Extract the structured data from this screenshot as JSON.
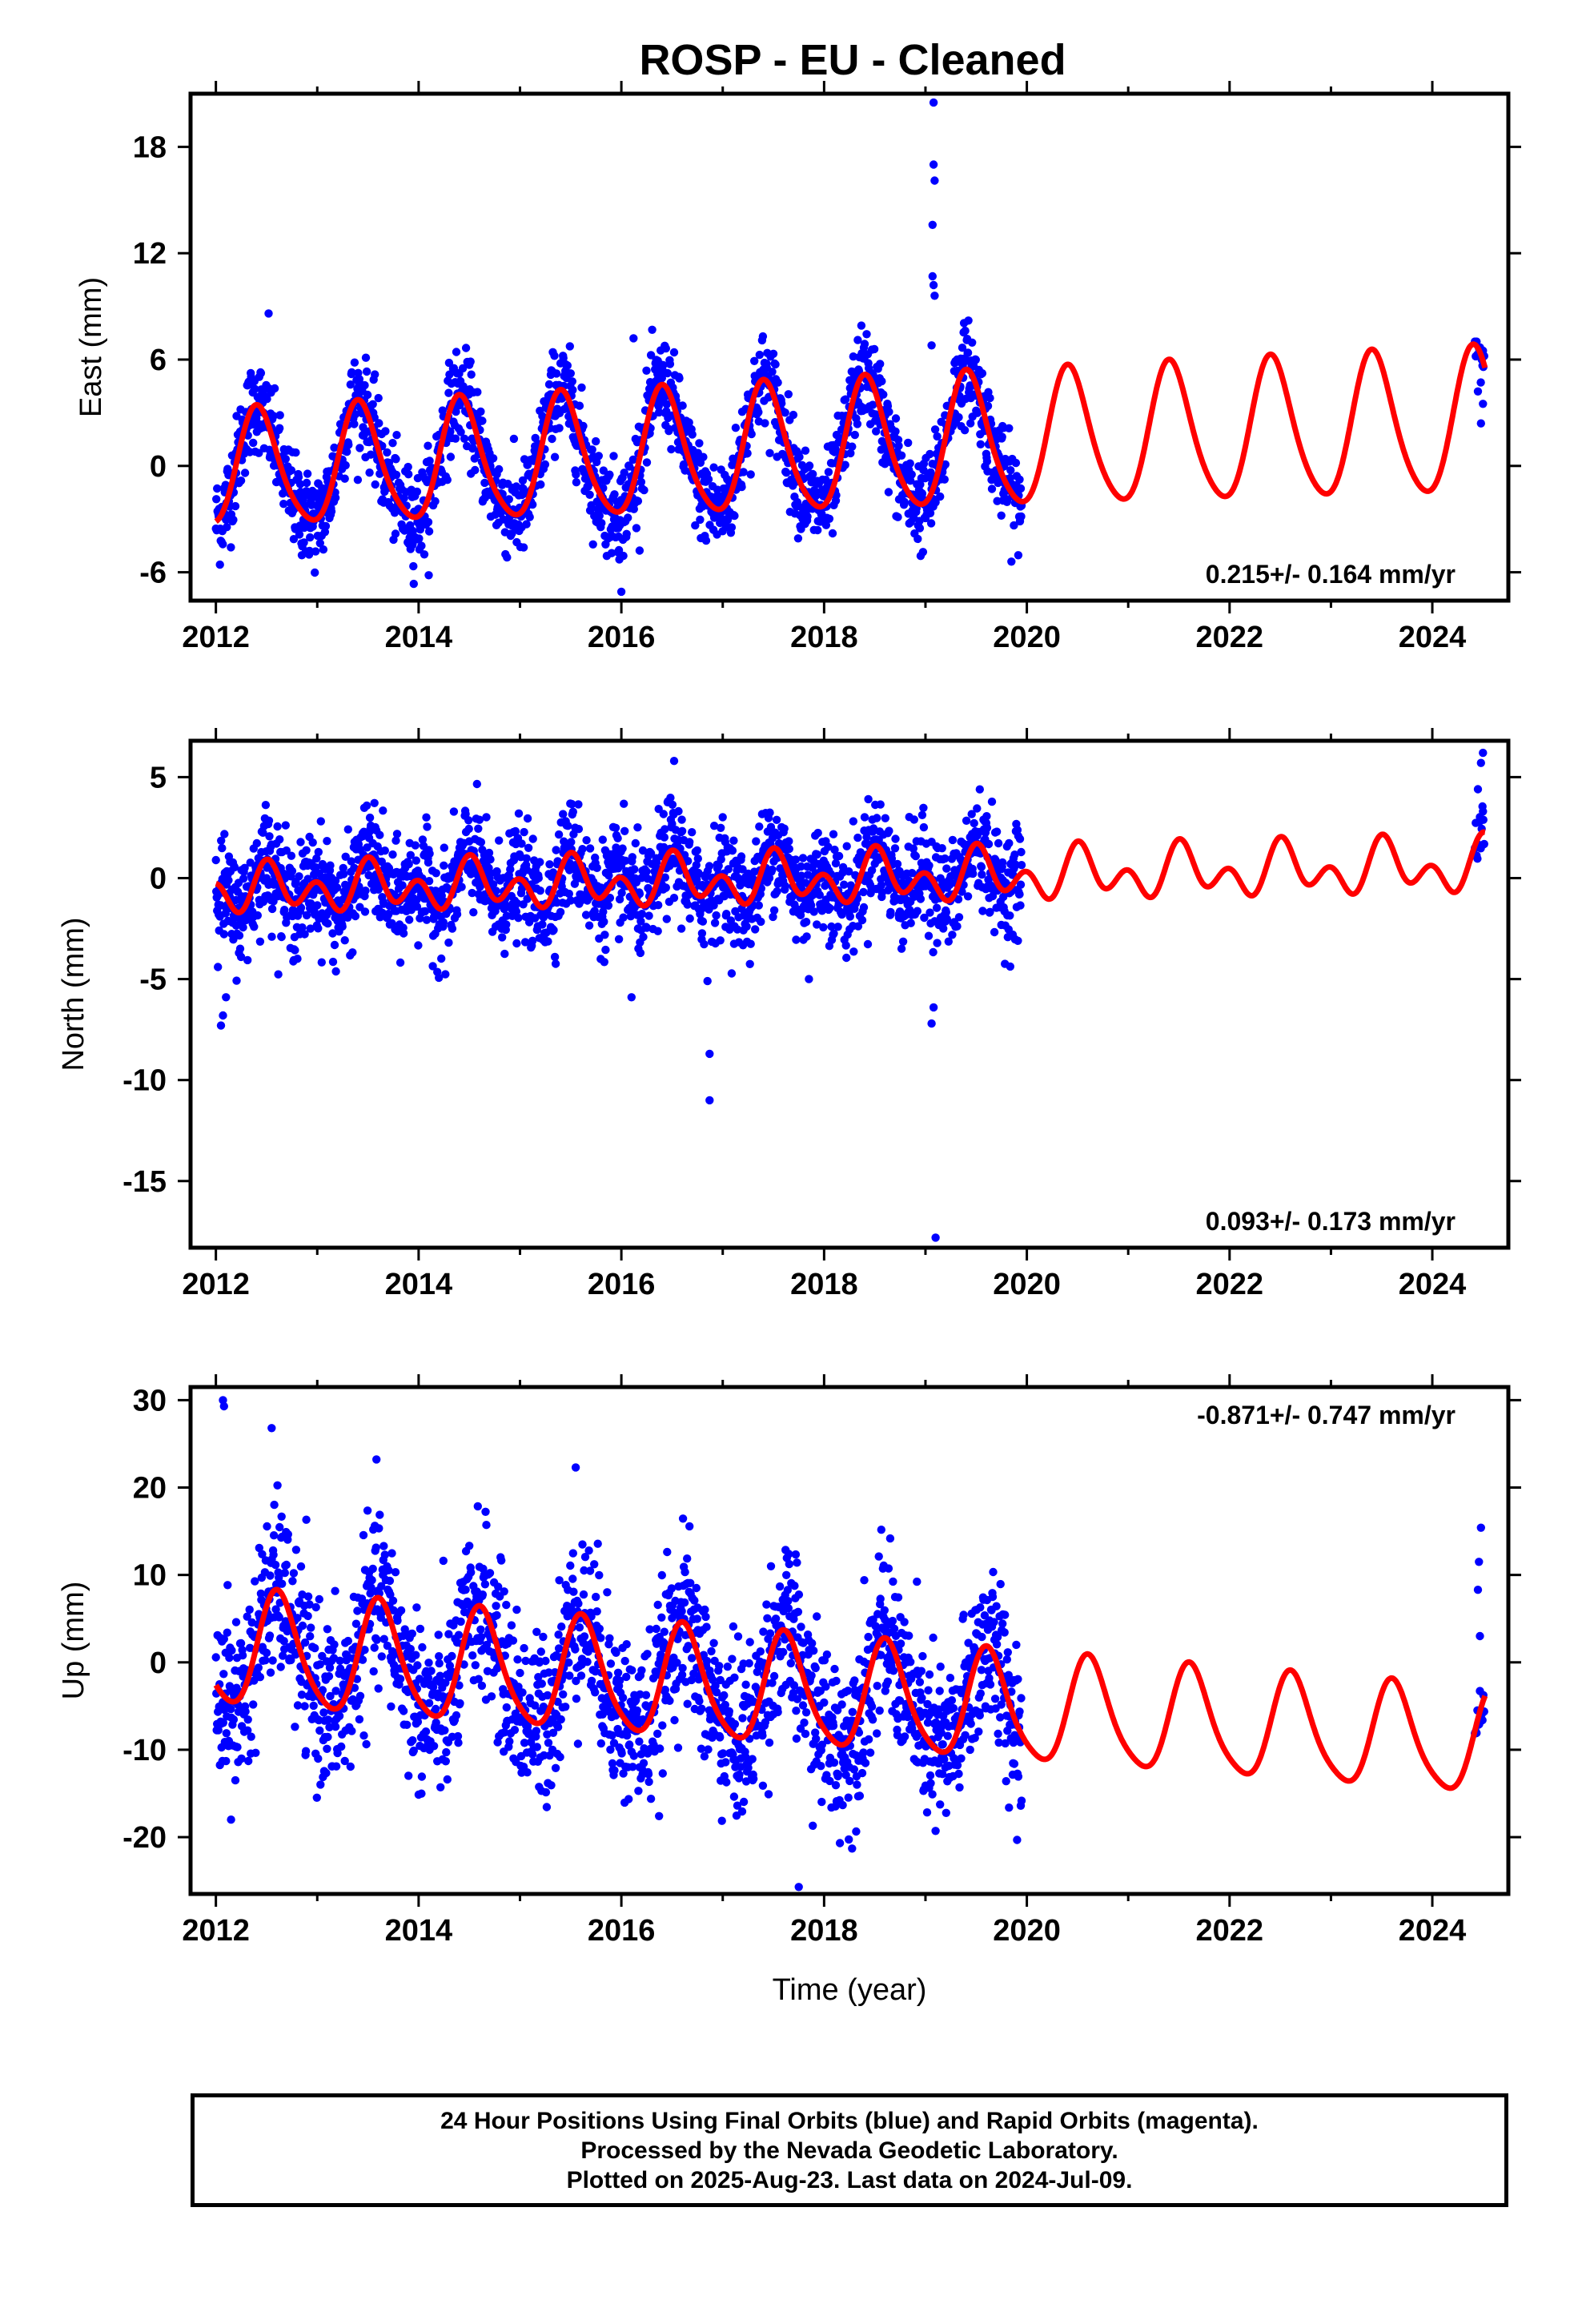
{
  "title": "ROSP  - EU - Cleaned",
  "footer": {
    "line1": "24 Hour Positions Using Final Orbits (blue) and Rapid Orbits (magenta).",
    "line2": "Processed by the Nevada Geodetic Laboratory.",
    "line3": "Plotted on 2025-Aug-23. Last data on 2024-Jul-09."
  },
  "colors": {
    "final_orbits": "#0000ff",
    "model": "#ff0000",
    "frame": "#000000"
  },
  "chart_data": [
    {
      "type": "scatter",
      "name": "east",
      "ylabel": "East (mm)",
      "xlabel": "",
      "xlim": [
        2011.75,
        2024.75
      ],
      "ylim": [
        -7.6,
        21
      ],
      "xticks": [
        "2012",
        "2014",
        "2016",
        "2018",
        "2020",
        "2022",
        "2024"
      ],
      "yticks": [
        "-6",
        "0",
        "6",
        "12",
        "18"
      ],
      "ytick_values": [
        -6,
        0,
        6,
        12,
        18
      ],
      "rate": "0.215+/- 0.164 mm/yr",
      "rate_position": "bottom-right",
      "model": {
        "offset": -0.3,
        "trend": 0.215,
        "annual_amp": 3.2,
        "annual_amp_growth": 0.07,
        "annual_peak_phase": 0.42,
        "semi_amp": 0.5
      },
      "data_span": [
        2012.0,
        2019.95
      ],
      "late_data_span": [
        2024.42,
        2024.52
      ],
      "noise_sd": 1.3,
      "outliers": [
        [
          2012.52,
          8.6
        ],
        [
          2016.12,
          7.2
        ],
        [
          2016.0,
          -7.1
        ],
        [
          2019.08,
          20.5
        ],
        [
          2019.08,
          17.0
        ],
        [
          2019.09,
          16.1
        ],
        [
          2019.07,
          13.6
        ],
        [
          2019.07,
          10.7
        ],
        [
          2019.08,
          10.2
        ],
        [
          2019.09,
          9.6
        ],
        [
          2019.06,
          6.8
        ],
        [
          2024.5,
          6.5
        ],
        [
          2024.48,
          2.4
        ],
        [
          2024.45,
          4.2
        ],
        [
          2024.5,
          3.5
        ]
      ]
    },
    {
      "type": "scatter",
      "name": "north",
      "ylabel": "North (mm)",
      "xlabel": "",
      "xlim": [
        2011.75,
        2024.75
      ],
      "ylim": [
        -18.3,
        6.8
      ],
      "xticks": [
        "2012",
        "2014",
        "2016",
        "2018",
        "2020",
        "2022",
        "2024"
      ],
      "yticks": [
        "-15",
        "-10",
        "-5",
        "0",
        "5"
      ],
      "ytick_values": [
        -15,
        -10,
        -5,
        0,
        5
      ],
      "rate": "0.093+/- 0.173 mm/yr",
      "rate_position": "bottom-right",
      "model": {
        "offset": -0.6,
        "trend": 0.093,
        "annual_amp": 0.6,
        "annual_amp_growth": 0.02,
        "annual_peak_phase": 0.55,
        "semi_amp": 0.9
      },
      "data_span": [
        2012.0,
        2019.95
      ],
      "late_data_span": [
        2024.42,
        2024.52
      ],
      "noise_sd": 1.3,
      "outliers": [
        [
          2012.05,
          -7.3
        ],
        [
          2012.07,
          -6.8
        ],
        [
          2012.1,
          -5.9
        ],
        [
          2016.52,
          5.8
        ],
        [
          2016.85,
          -5.1
        ],
        [
          2016.87,
          -8.7
        ],
        [
          2016.87,
          -11.0
        ],
        [
          2019.1,
          -17.8
        ],
        [
          2019.06,
          -7.2
        ],
        [
          2019.08,
          -6.4
        ],
        [
          2016.1,
          -5.9
        ],
        [
          2017.85,
          -5.0
        ],
        [
          2024.5,
          6.2
        ],
        [
          2024.48,
          5.7
        ],
        [
          2024.45,
          4.4
        ],
        [
          2024.5,
          3.3
        ]
      ]
    },
    {
      "type": "scatter",
      "name": "up",
      "ylabel": "Up (mm)",
      "xlabel": "Time (year)",
      "xlim": [
        2011.75,
        2024.75
      ],
      "ylim": [
        -26.5,
        31.5
      ],
      "xticks": [
        "2012",
        "2014",
        "2016",
        "2018",
        "2020",
        "2022",
        "2024"
      ],
      "yticks": [
        "-20",
        "-10",
        "0",
        "10",
        "20",
        "30"
      ],
      "ytick_values": [
        -20,
        -10,
        0,
        10,
        20,
        30
      ],
      "rate": "-0.871+/- 0.747 mm/yr",
      "rate_position": "top-right",
      "model": {
        "offset": 1.5,
        "trend": -0.871,
        "annual_amp": 6.5,
        "annual_amp_growth": -0.05,
        "annual_peak_phase": 0.62,
        "semi_amp": 1.0
      },
      "data_span": [
        2012.0,
        2019.95
      ],
      "late_data_span": [
        2024.42,
        2024.52
      ],
      "noise_sd": 4.8,
      "outliers": [
        [
          2012.07,
          30.0
        ],
        [
          2012.08,
          29.3
        ],
        [
          2012.55,
          26.8
        ],
        [
          2015.55,
          22.3
        ],
        [
          2017.75,
          -25.7
        ],
        [
          2012.15,
          -18.0
        ],
        [
          2024.48,
          15.4
        ],
        [
          2024.46,
          11.5
        ],
        [
          2024.45,
          8.3
        ],
        [
          2024.47,
          3.0
        ]
      ]
    }
  ]
}
